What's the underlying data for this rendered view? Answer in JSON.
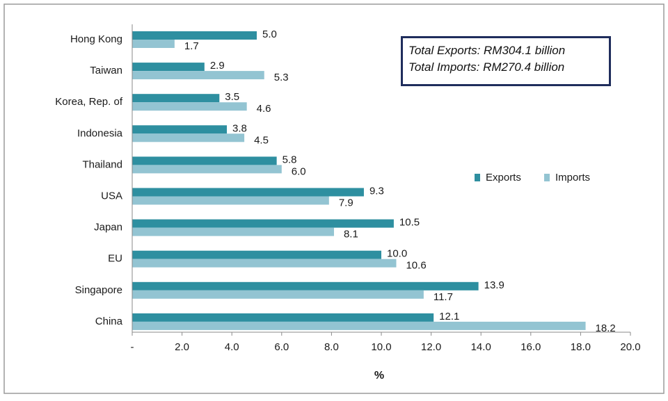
{
  "colors": {
    "exports": "#2e8fa0",
    "imports": "#93c4d2"
  },
  "note": {
    "exports_line": "Total Exports: RM304.1 billion",
    "imports_line": "Total Imports: RM270.4 billion"
  },
  "chart_data": {
    "type": "bar",
    "orientation": "horizontal",
    "categories": [
      "Hong Kong",
      "Taiwan",
      "Korea, Rep. of",
      "Indonesia",
      "Thailand",
      "USA",
      "Japan",
      "EU",
      "Singapore",
      "China"
    ],
    "series": [
      {
        "name": "Exports",
        "values": [
          5.0,
          2.9,
          3.5,
          3.8,
          5.8,
          9.3,
          10.5,
          10.0,
          13.9,
          12.1
        ]
      },
      {
        "name": "Imports",
        "values": [
          1.7,
          5.3,
          4.6,
          4.5,
          6.0,
          7.9,
          8.1,
          10.6,
          11.7,
          18.2
        ]
      }
    ],
    "value_labels": {
      "Exports": [
        "5.0",
        "2.9",
        "3.5",
        "3.8",
        "5.8",
        "9.3",
        "10.5",
        "10.0",
        "13.9",
        "12.1"
      ],
      "Imports": [
        "1.7",
        "5.3",
        "4.6",
        "4.5",
        "6.0",
        "7.9",
        "8.1",
        "10.6",
        "11.7",
        "18.2"
      ]
    },
    "xlabel": "%",
    "xlim": [
      0,
      20
    ],
    "xticks": [
      0,
      2,
      4,
      6,
      8,
      10,
      12,
      14,
      16,
      18,
      20
    ],
    "xtick_labels": [
      "-",
      "2.0",
      "4.0",
      "6.0",
      "8.0",
      "10.0",
      "12.0",
      "14.0",
      "16.0",
      "18.0",
      "20.0"
    ],
    "legend_position": "right",
    "grid": false
  }
}
